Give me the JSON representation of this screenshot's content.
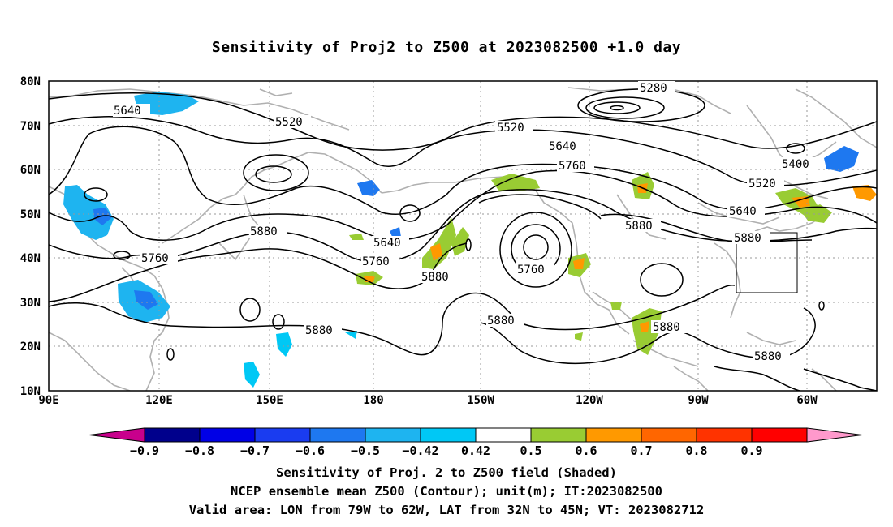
{
  "title": "Sensitivity of Proj2 to Z500 at 2023082500 +1.0 day",
  "lat_labels": [
    "80N",
    "70N",
    "60N",
    "50N",
    "40N",
    "30N",
    "20N",
    "10N"
  ],
  "lon_labels": [
    "90E",
    "120E",
    "150E",
    "180",
    "150W",
    "120W",
    "90W",
    "60W"
  ],
  "contour_labels": [
    "5280",
    "5400",
    "5520",
    "5520",
    "5520",
    "5640",
    "5640",
    "5640",
    "5640",
    "5760",
    "5760",
    "5760",
    "5760",
    "5880",
    "5880",
    "5880",
    "5880",
    "5880",
    "5880",
    "5880"
  ],
  "colorbar": {
    "labels": [
      "-0.9",
      "-0.8",
      "-0.7",
      "-0.6",
      "-0.5",
      "-0.42",
      "0.42",
      "0.5",
      "0.6",
      "0.7",
      "0.8",
      "0.9"
    ],
    "colors": [
      "#c8008c",
      "#00008c",
      "#0000e6",
      "#1a3cf0",
      "#1e78f0",
      "#1eb4f0",
      "#00c8f5",
      "#ffffff",
      "#99cc33",
      "#ff9900",
      "#ff6600",
      "#ff3300",
      "#ff0000",
      "#ff99cc"
    ]
  },
  "valid_area": "Valid area: LON from 79W to 62W, LAT from 32N to 45N; VT: 2023082712",
  "captions": {
    "line1": "Sensitivity of Proj. 2 to Z500 field (Shaded)",
    "line2": "NCEP ensemble mean Z500 (Contour); unit(m); IT:2023082500",
    "line3": "Valid area: LON from 79W to 62W, LAT from 32N to 45N; VT: 2023082712"
  }
}
